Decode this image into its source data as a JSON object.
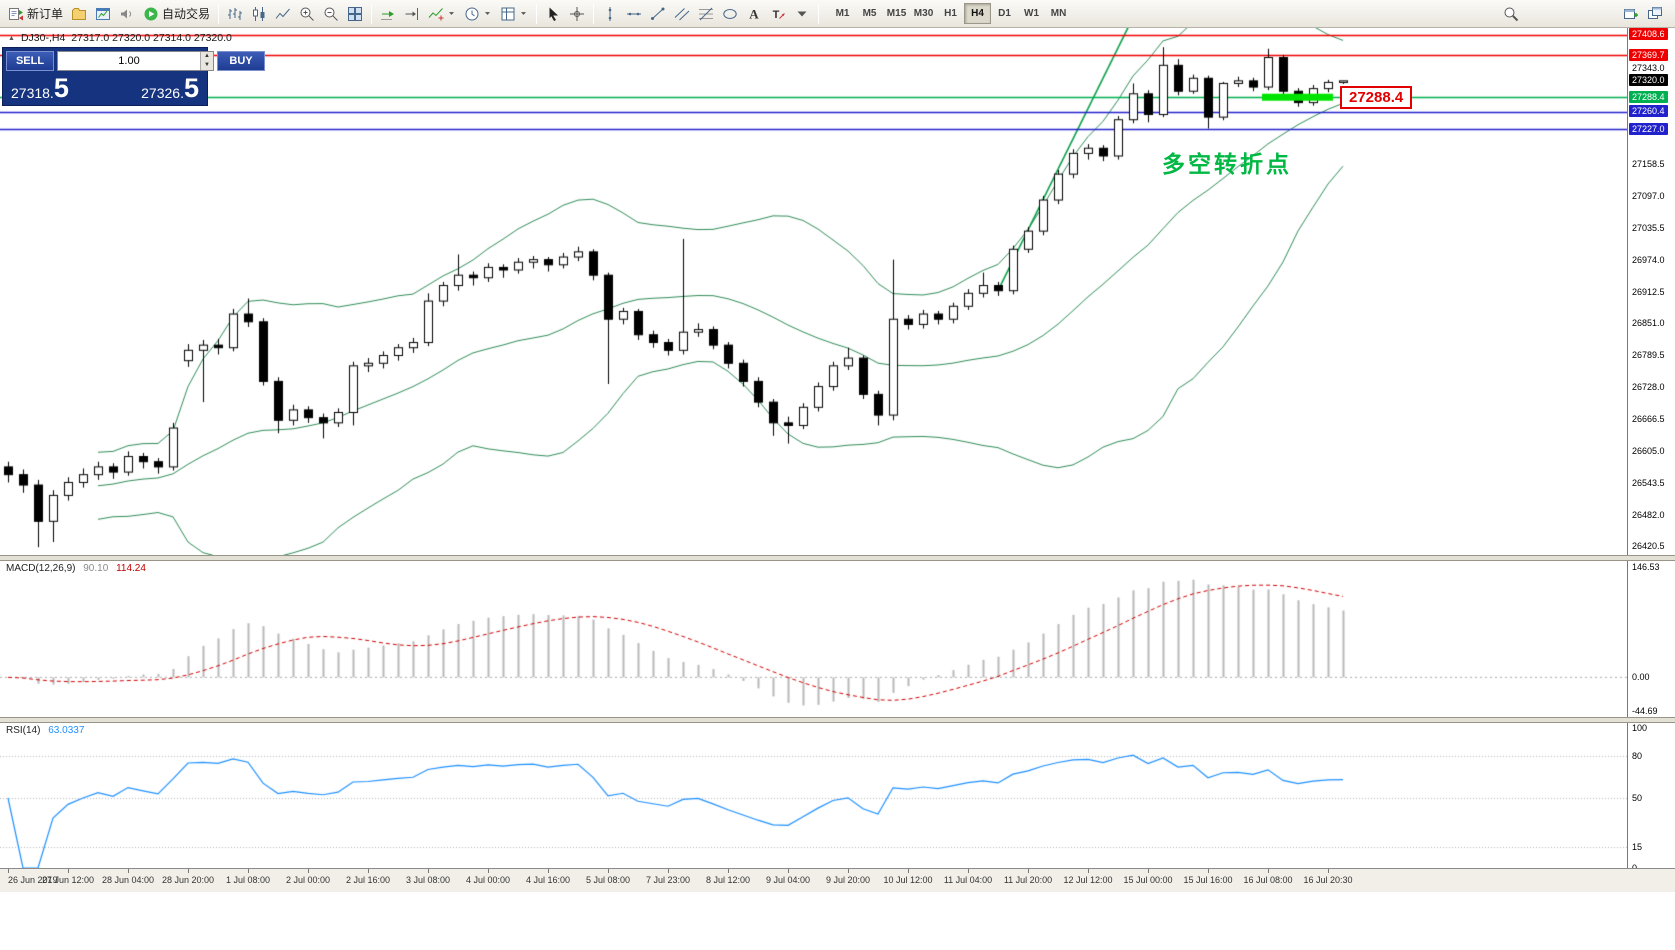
{
  "toolbar": {
    "buttons": [
      {
        "name": "new-order-button",
        "icon": "new-order-icon",
        "label": "新订单"
      },
      {
        "name": "profiles-button",
        "icon": "profiles-icon"
      },
      {
        "name": "chart-window-button",
        "icon": "chart-window-icon"
      },
      {
        "name": "alerts-button",
        "icon": "speaker-icon"
      },
      {
        "name": "auto-trading-button",
        "icon": "autotrade-play-icon",
        "label": "自动交易"
      },
      {
        "sep": true
      },
      {
        "name": "bar-chart-button",
        "icon": "bar-chart-icon"
      },
      {
        "name": "candlestick-button",
        "icon": "candlestick-icon"
      },
      {
        "name": "line-chart-button",
        "icon": "line-chart-icon"
      },
      {
        "name": "zoom-in-button",
        "icon": "zoom-in-icon"
      },
      {
        "name": "zoom-out-button",
        "icon": "zoom-out-icon"
      },
      {
        "name": "tile-windows-button",
        "icon": "tile-windows-icon"
      },
      {
        "sep": true
      },
      {
        "name": "auto-scroll-button",
        "icon": "auto-scroll-icon"
      },
      {
        "name": "chart-shift-button",
        "icon": "chart-shift-icon"
      },
      {
        "name": "indicators-button",
        "icon": "indicators-icon",
        "dropdown": true
      },
      {
        "name": "periods-button",
        "icon": "clock-icon",
        "dropdown": true
      },
      {
        "name": "templates-button",
        "icon": "template-icon",
        "dropdown": true
      },
      {
        "sep": true
      },
      {
        "name": "cursor-button",
        "icon": "cursor-icon"
      },
      {
        "name": "crosshair-button",
        "icon": "crosshair-icon"
      },
      {
        "sep": true
      },
      {
        "name": "vertical-line-button",
        "icon": "vertical-line-icon"
      },
      {
        "name": "horizontal-line-button",
        "icon": "horizontal-line-icon"
      },
      {
        "name": "trendline-button",
        "icon": "trendline-icon"
      },
      {
        "name": "channel-button",
        "icon": "channel-icon"
      },
      {
        "name": "fibonacci-button",
        "icon": "fibonacci-icon"
      },
      {
        "name": "shapes-button",
        "icon": "shapes-icon"
      },
      {
        "name": "text-button",
        "icon": "text-icon"
      },
      {
        "name": "arrow-label-button",
        "icon": "label-icon"
      },
      {
        "name": "drawings-dropdown-button",
        "icon": "chevron-down-icon"
      },
      {
        "sep": true
      }
    ],
    "timeframes": [
      "M1",
      "M5",
      "M15",
      "M30",
      "H1",
      "H4",
      "D1",
      "W1",
      "MN"
    ],
    "active_timeframe": "H4",
    "right_buttons": [
      {
        "name": "search-button",
        "icon": "search-icon"
      },
      {
        "name": "new-chart-window-button",
        "icon": "new-window-icon"
      },
      {
        "name": "window-list-button",
        "icon": "windows-icon"
      }
    ]
  },
  "chart_info": {
    "marker": "▲",
    "symbol_period": "DJ30-,H4",
    "ohlc": "27317.0 27320.0 27314.0 27320.0"
  },
  "trade_panel": {
    "sell_label": "SELL",
    "buy_label": "BUY",
    "volume": "1.00",
    "sell_price": "27318.",
    "sell_price_big": "5",
    "buy_price": "27326.",
    "buy_price_big": "5"
  },
  "annotations": {
    "turning_point": "多空转折点",
    "support_label": "27288.4"
  },
  "indicator_panels": {
    "macd": {
      "name": "MACD(12,26,9)",
      "main_value": "90.10",
      "signal_value": "114.24",
      "scale": [
        "146.53",
        "0.00",
        "-44.69"
      ]
    },
    "rsi": {
      "name": "RSI(14)",
      "value": "63.0337",
      "scale": [
        100,
        80,
        50,
        15,
        0
      ],
      "levels": [
        80,
        50,
        15
      ]
    }
  },
  "chart_data": {
    "type": "candlestick",
    "symbol": "DJ30-",
    "timeframe": "H4",
    "current_ohlc": {
      "open": 27317.0,
      "high": 27320.0,
      "low": 27314.0,
      "close": 27320.0
    },
    "ylim": [
      26405,
      27422
    ],
    "price_axis_labels": [
      27343.0,
      27158.5,
      27097.0,
      27035.5,
      26974.0,
      26912.5,
      26851.0,
      26789.5,
      26728.0,
      26666.5,
      26605.0,
      26543.5,
      26482.0,
      26420.5
    ],
    "price_badges": [
      {
        "value": 27408.6,
        "color": "#ee0000"
      },
      {
        "value": 27369.7,
        "color": "#ee0000"
      },
      {
        "value": 27320.0,
        "color": "#000000"
      },
      {
        "value": 27288.4,
        "color": "#00b050"
      },
      {
        "value": 27260.4,
        "color": "#2222cc"
      },
      {
        "value": 27227.0,
        "color": "#2222cc"
      }
    ],
    "horizontal_lines": [
      {
        "price": 27408.6,
        "color": "#ee0000"
      },
      {
        "price": 27369.7,
        "color": "#ee0000"
      },
      {
        "price": 27288.4,
        "color": "#00b050"
      },
      {
        "price": 27260.4,
        "color": "#2222cc"
      },
      {
        "price": 27227.0,
        "color": "#2222cc"
      }
    ],
    "support_highlight": {
      "price": 27288.4,
      "x_from": 1262,
      "x_to": 1333,
      "color": "#00e400"
    },
    "trendline": {
      "from_index": 66,
      "from_price": 26915,
      "to_index": 76.5,
      "to_price": 27530,
      "color": "#0ca04a"
    },
    "bollinger": {
      "period": 20,
      "deviation": 2,
      "color": "#2e8b57"
    },
    "time_labels": [
      "26 Jun 2019",
      "27 Jun 12:00",
      "28 Jun 04:00",
      "28 Jun 20:00",
      "1 Jul 08:00",
      "2 Jul 00:00",
      "2 Jul 16:00",
      "3 Jul 08:00",
      "4 Jul 00:00",
      "4 Jul 16:00",
      "5 Jul 08:00",
      "7 Jul 23:00",
      "8 Jul 12:00",
      "9 Jul 04:00",
      "9 Jul 20:00",
      "10 Jul 12:00",
      "11 Jul 04:00",
      "11 Jul 20:00",
      "12 Jul 12:00",
      "15 Jul 00:00",
      "15 Jul 16:00",
      "16 Jul 08:00",
      "16 Jul 20:30"
    ],
    "candles": [
      [
        26575,
        26585,
        26545,
        26560
      ],
      [
        26560,
        26570,
        26525,
        26540
      ],
      [
        26540,
        26550,
        26420,
        26470
      ],
      [
        26470,
        26530,
        26430,
        26520
      ],
      [
        26520,
        26555,
        26510,
        26545
      ],
      [
        26545,
        26572,
        26535,
        26560
      ],
      [
        26560,
        26585,
        26550,
        26575
      ],
      [
        26575,
        26582,
        26552,
        26565
      ],
      [
        26565,
        26605,
        26558,
        26595
      ],
      [
        26595,
        26602,
        26572,
        26585
      ],
      [
        26585,
        26592,
        26562,
        26575
      ],
      [
        26575,
        26660,
        26568,
        26650
      ],
      [
        26780,
        26812,
        26768,
        26800
      ],
      [
        26800,
        26820,
        26700,
        26810
      ],
      [
        26810,
        26822,
        26792,
        26805
      ],
      [
        26805,
        26880,
        26798,
        26870
      ],
      [
        26870,
        26900,
        26845,
        26855
      ],
      [
        26855,
        26862,
        26732,
        26740
      ],
      [
        26740,
        26748,
        26640,
        26665
      ],
      [
        26665,
        26695,
        26655,
        26685
      ],
      [
        26685,
        26692,
        26660,
        26670
      ],
      [
        26670,
        26678,
        26630,
        26660
      ],
      [
        26660,
        26688,
        26652,
        26680
      ],
      [
        26680,
        26778,
        26655,
        26770
      ],
      [
        26770,
        26785,
        26758,
        26775
      ],
      [
        26775,
        26798,
        26765,
        26790
      ],
      [
        26790,
        26812,
        26780,
        26805
      ],
      [
        26805,
        26824,
        26795,
        26815
      ],
      [
        26815,
        26910,
        26808,
        26895
      ],
      [
        26895,
        26932,
        26885,
        26925
      ],
      [
        26925,
        26985,
        26915,
        26945
      ],
      [
        26945,
        26952,
        26925,
        26940
      ],
      [
        26940,
        26968,
        26932,
        26960
      ],
      [
        26960,
        26966,
        26940,
        26955
      ],
      [
        26955,
        26978,
        26948,
        26970
      ],
      [
        26970,
        26982,
        26958,
        26975
      ],
      [
        26975,
        26980,
        26952,
        26965
      ],
      [
        26965,
        26988,
        26958,
        26980
      ],
      [
        26980,
        27000,
        26972,
        26990
      ],
      [
        26990,
        26995,
        26935,
        26945
      ],
      [
        26945,
        26950,
        26735,
        26860
      ],
      [
        26860,
        26882,
        26850,
        26875
      ],
      [
        26875,
        26880,
        26820,
        26830
      ],
      [
        26830,
        26838,
        26805,
        26815
      ],
      [
        26815,
        26822,
        26790,
        26800
      ],
      [
        26800,
        27015,
        26792,
        26835
      ],
      [
        26835,
        26852,
        26826,
        26840
      ],
      [
        26840,
        26846,
        26802,
        26810
      ],
      [
        26810,
        26816,
        26765,
        26775
      ],
      [
        26775,
        26782,
        26730,
        26740
      ],
      [
        26740,
        26748,
        26690,
        26700
      ],
      [
        26700,
        26706,
        26635,
        26660
      ],
      [
        26660,
        26672,
        26620,
        26655
      ],
      [
        26655,
        26698,
        26648,
        26690
      ],
      [
        26690,
        26738,
        26682,
        26730
      ],
      [
        26730,
        26778,
        26722,
        26770
      ],
      [
        26770,
        26805,
        26762,
        26785
      ],
      [
        26785,
        26790,
        26706,
        26715
      ],
      [
        26715,
        26722,
        26655,
        26675
      ],
      [
        26675,
        26975,
        26665,
        26860
      ],
      [
        26860,
        26868,
        26840,
        26850
      ],
      [
        26850,
        26878,
        26842,
        26870
      ],
      [
        26870,
        26876,
        26850,
        26860
      ],
      [
        26860,
        26892,
        26852,
        26885
      ],
      [
        26885,
        26918,
        26878,
        26910
      ],
      [
        26910,
        26950,
        26902,
        26925
      ],
      [
        26925,
        26932,
        26905,
        26915
      ],
      [
        26915,
        27002,
        26908,
        26995
      ],
      [
        26995,
        27038,
        26988,
        27030
      ],
      [
        27030,
        27098,
        27022,
        27090
      ],
      [
        27090,
        27148,
        27082,
        27140
      ],
      [
        27140,
        27188,
        27132,
        27180
      ],
      [
        27180,
        27198,
        27168,
        27190
      ],
      [
        27190,
        27196,
        27165,
        27175
      ],
      [
        27175,
        27252,
        27168,
        27245
      ],
      [
        27245,
        27315,
        27238,
        27295
      ],
      [
        27295,
        27302,
        27240,
        27255
      ],
      [
        27255,
        27385,
        27250,
        27350
      ],
      [
        27350,
        27362,
        27292,
        27300
      ],
      [
        27300,
        27332,
        27295,
        27325
      ],
      [
        27325,
        27330,
        27228,
        27250
      ],
      [
        27250,
        27318,
        27244,
        27315
      ],
      [
        27315,
        27328,
        27308,
        27320
      ],
      [
        27320,
        27326,
        27300,
        27308
      ],
      [
        27308,
        27382,
        27302,
        27365
      ],
      [
        27365,
        27370,
        27292,
        27300
      ],
      [
        27300,
        27306,
        27270,
        27278
      ],
      [
        27278,
        27312,
        27272,
        27305
      ],
      [
        27305,
        27322,
        27298,
        27317
      ],
      [
        27317,
        27320,
        27314,
        27320
      ]
    ]
  }
}
